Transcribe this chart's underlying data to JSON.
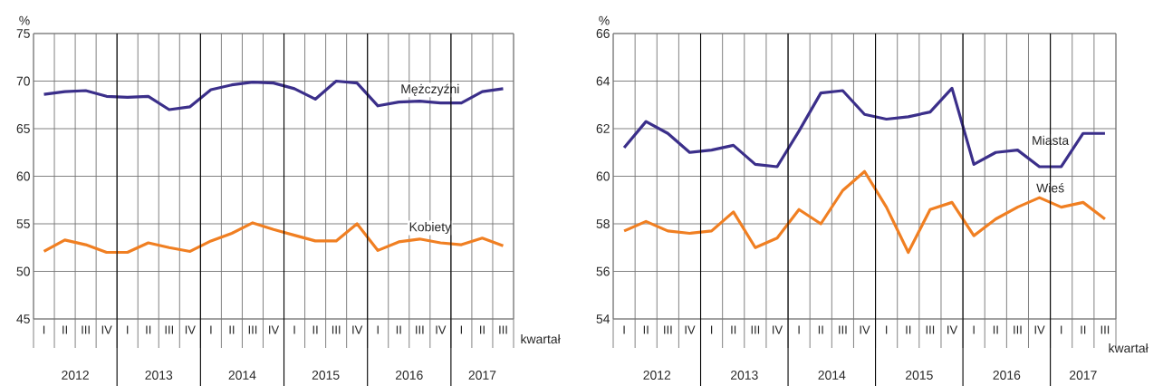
{
  "chart_data": [
    {
      "type": "line",
      "categories": [
        "I",
        "II",
        "III",
        "IV",
        "I",
        "II",
        "III",
        "IV",
        "I",
        "II",
        "III",
        "IV",
        "I",
        "II",
        "III",
        "IV",
        "I",
        "II",
        "III",
        "IV",
        "I",
        "II",
        "III"
      ],
      "xlabel": "kwartał",
      "ylabel": "%",
      "ylim": [
        45,
        75
      ],
      "yticks": [
        45,
        50,
        55,
        60,
        65,
        70,
        75
      ],
      "grid": true,
      "legend": false,
      "annotations": [
        "2012",
        "2013",
        "2014",
        "2015",
        "2016",
        "2017"
      ],
      "series": [
        {
          "name": "Mężczyźni",
          "color": "#3b2f8a",
          "values": [
            68.6,
            68.9,
            69.0,
            68.4,
            68.3,
            68.4,
            67.0,
            67.3,
            69.1,
            69.6,
            69.9,
            69.8,
            69.2,
            68.1,
            70.0,
            69.8,
            67.4,
            67.8,
            67.9,
            67.7,
            67.7,
            68.9,
            69.2
          ]
        },
        {
          "name": "Kobiety",
          "color": "#f07f22",
          "values": [
            52.1,
            53.3,
            52.8,
            52.0,
            52.0,
            53.0,
            52.5,
            52.1,
            53.2,
            54.0,
            55.1,
            54.4,
            53.8,
            53.2,
            53.2,
            55.0,
            52.2,
            53.1,
            53.4,
            53.0,
            52.8,
            53.5,
            52.7
          ]
        }
      ]
    },
    {
      "type": "line",
      "categories": [
        "I",
        "II",
        "III",
        "IV",
        "I",
        "II",
        "III",
        "IV",
        "I",
        "II",
        "III",
        "IV",
        "I",
        "II",
        "III",
        "IV",
        "I",
        "II",
        "III",
        "IV",
        "I",
        "II",
        "III"
      ],
      "xlabel": "kwartał",
      "ylabel": "%",
      "ylim": [
        54,
        66
      ],
      "yticks": [
        54,
        56,
        58,
        60,
        62,
        64,
        66
      ],
      "grid": true,
      "legend": false,
      "annotations": [
        "2012",
        "2013",
        "2014",
        "2015",
        "2016",
        "2017"
      ],
      "series": [
        {
          "name": "Miasta",
          "color": "#3b2f8a",
          "values": [
            61.2,
            62.3,
            61.8,
            61.0,
            61.1,
            61.3,
            60.5,
            60.4,
            61.9,
            63.5,
            63.6,
            62.6,
            62.4,
            62.5,
            62.7,
            63.7,
            60.5,
            61.0,
            61.1,
            60.4,
            60.4,
            61.8,
            61.8
          ]
        },
        {
          "name": "Wieś",
          "color": "#f07f22",
          "values": [
            57.7,
            58.1,
            57.7,
            57.6,
            57.7,
            58.5,
            57.0,
            57.4,
            58.6,
            58.0,
            59.4,
            60.2,
            58.7,
            56.8,
            58.6,
            58.9,
            57.5,
            58.2,
            58.7,
            59.1,
            58.7,
            58.9,
            58.2
          ]
        }
      ]
    }
  ]
}
